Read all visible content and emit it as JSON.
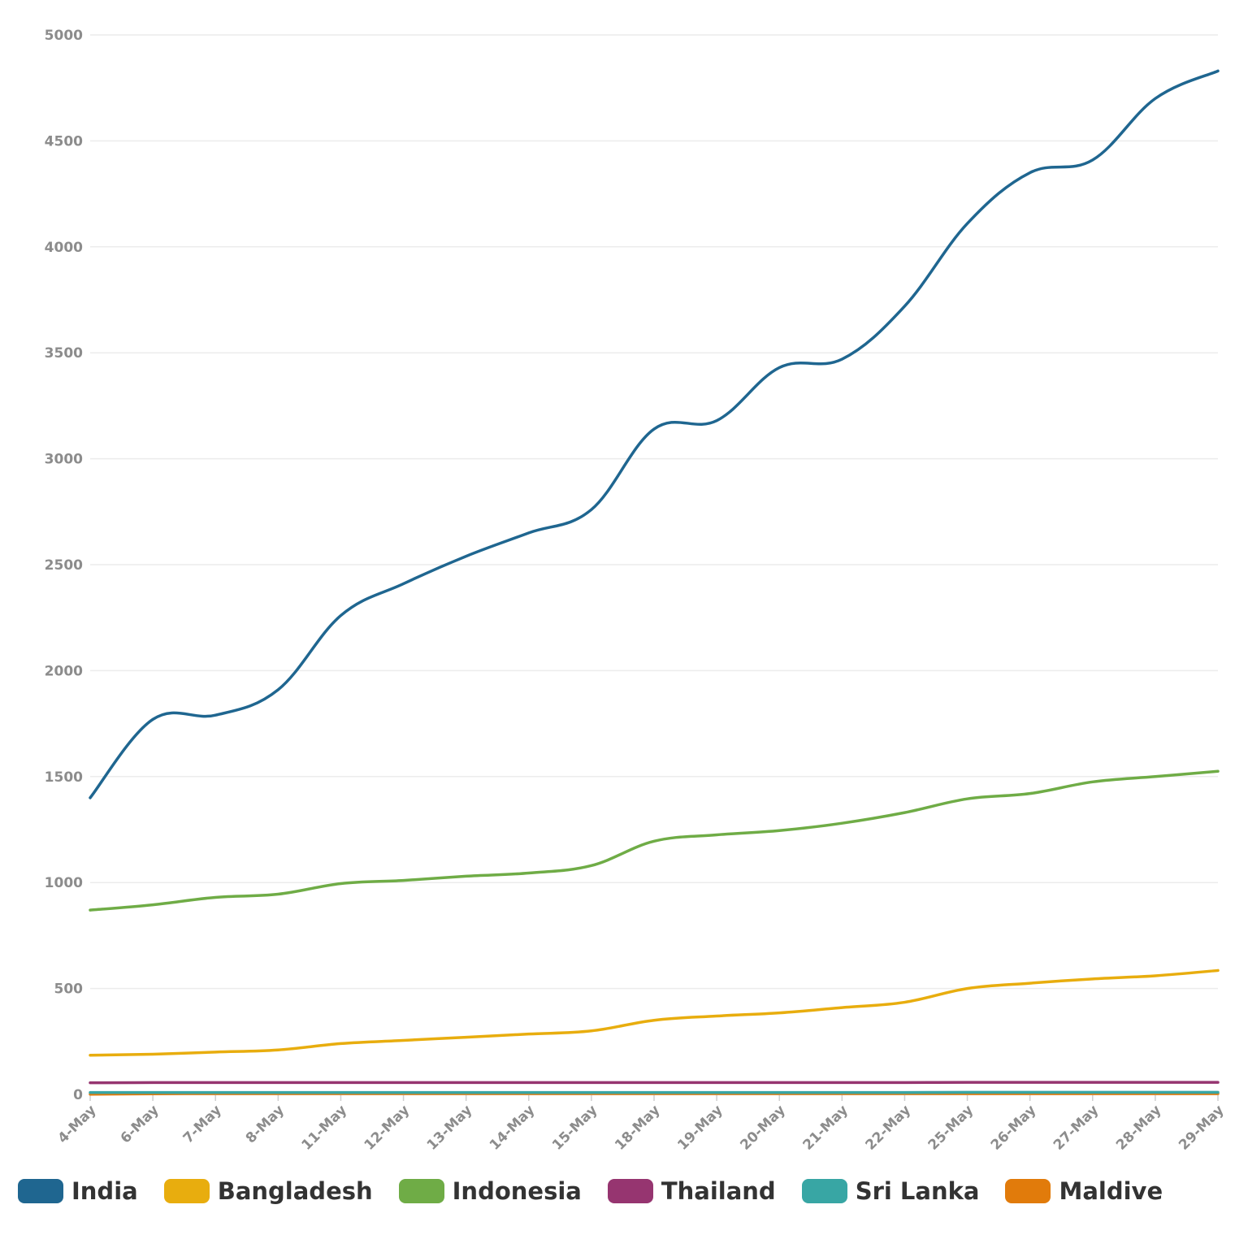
{
  "chart_data": {
    "type": "line",
    "title": "",
    "xlabel": "",
    "ylabel": "",
    "ylim": [
      0,
      5000
    ],
    "yticks": [
      "0",
      "500",
      "1000",
      "1500",
      "2000",
      "2500",
      "3000",
      "3500",
      "4000",
      "4500",
      "5000"
    ],
    "categories": [
      "4-May",
      "6-May",
      "7-May",
      "8-May",
      "11-May",
      "12-May",
      "13-May",
      "14-May",
      "15-May",
      "18-May",
      "19-May",
      "20-May",
      "21-May",
      "22-May",
      "25-May",
      "26-May",
      "27-May",
      "28-May",
      "29-May"
    ],
    "series": [
      {
        "name": "India",
        "color": "#1f6690",
        "values": [
          1400,
          1770,
          1790,
          1910,
          2260,
          2410,
          2540,
          2650,
          2760,
          3140,
          3180,
          3430,
          3470,
          3720,
          4110,
          4350,
          4410,
          4700,
          4830
        ]
      },
      {
        "name": "Bangladesh",
        "color": "#e8ad0e",
        "values": [
          185,
          190,
          200,
          210,
          240,
          255,
          270,
          285,
          300,
          350,
          370,
          385,
          410,
          435,
          500,
          525,
          545,
          560,
          585
        ]
      },
      {
        "name": "Indonesia",
        "color": "#6fac46",
        "values": [
          870,
          895,
          930,
          945,
          995,
          1010,
          1030,
          1045,
          1080,
          1195,
          1225,
          1245,
          1280,
          1330,
          1395,
          1420,
          1475,
          1500,
          1525
        ]
      },
      {
        "name": "Thailand",
        "color": "#963570",
        "values": [
          55,
          56,
          56,
          56,
          56,
          56,
          56,
          56,
          56,
          56,
          56,
          56,
          56,
          56,
          57,
          57,
          57,
          57,
          57
        ]
      },
      {
        "name": "Sri Lanka",
        "color": "#38a6a4",
        "values": [
          9,
          9,
          9,
          9,
          9,
          9,
          9,
          9,
          9,
          9,
          9,
          9,
          9,
          9,
          10,
          10,
          10,
          10,
          10
        ]
      },
      {
        "name": "Maldive",
        "color": "#e17b0b",
        "values": [
          1,
          3,
          4,
          4,
          4,
          4,
          4,
          4,
          4,
          4,
          4,
          4,
          4,
          4,
          4,
          4,
          4,
          4,
          4
        ]
      }
    ],
    "grid": true,
    "legend_position": "bottom-left"
  }
}
